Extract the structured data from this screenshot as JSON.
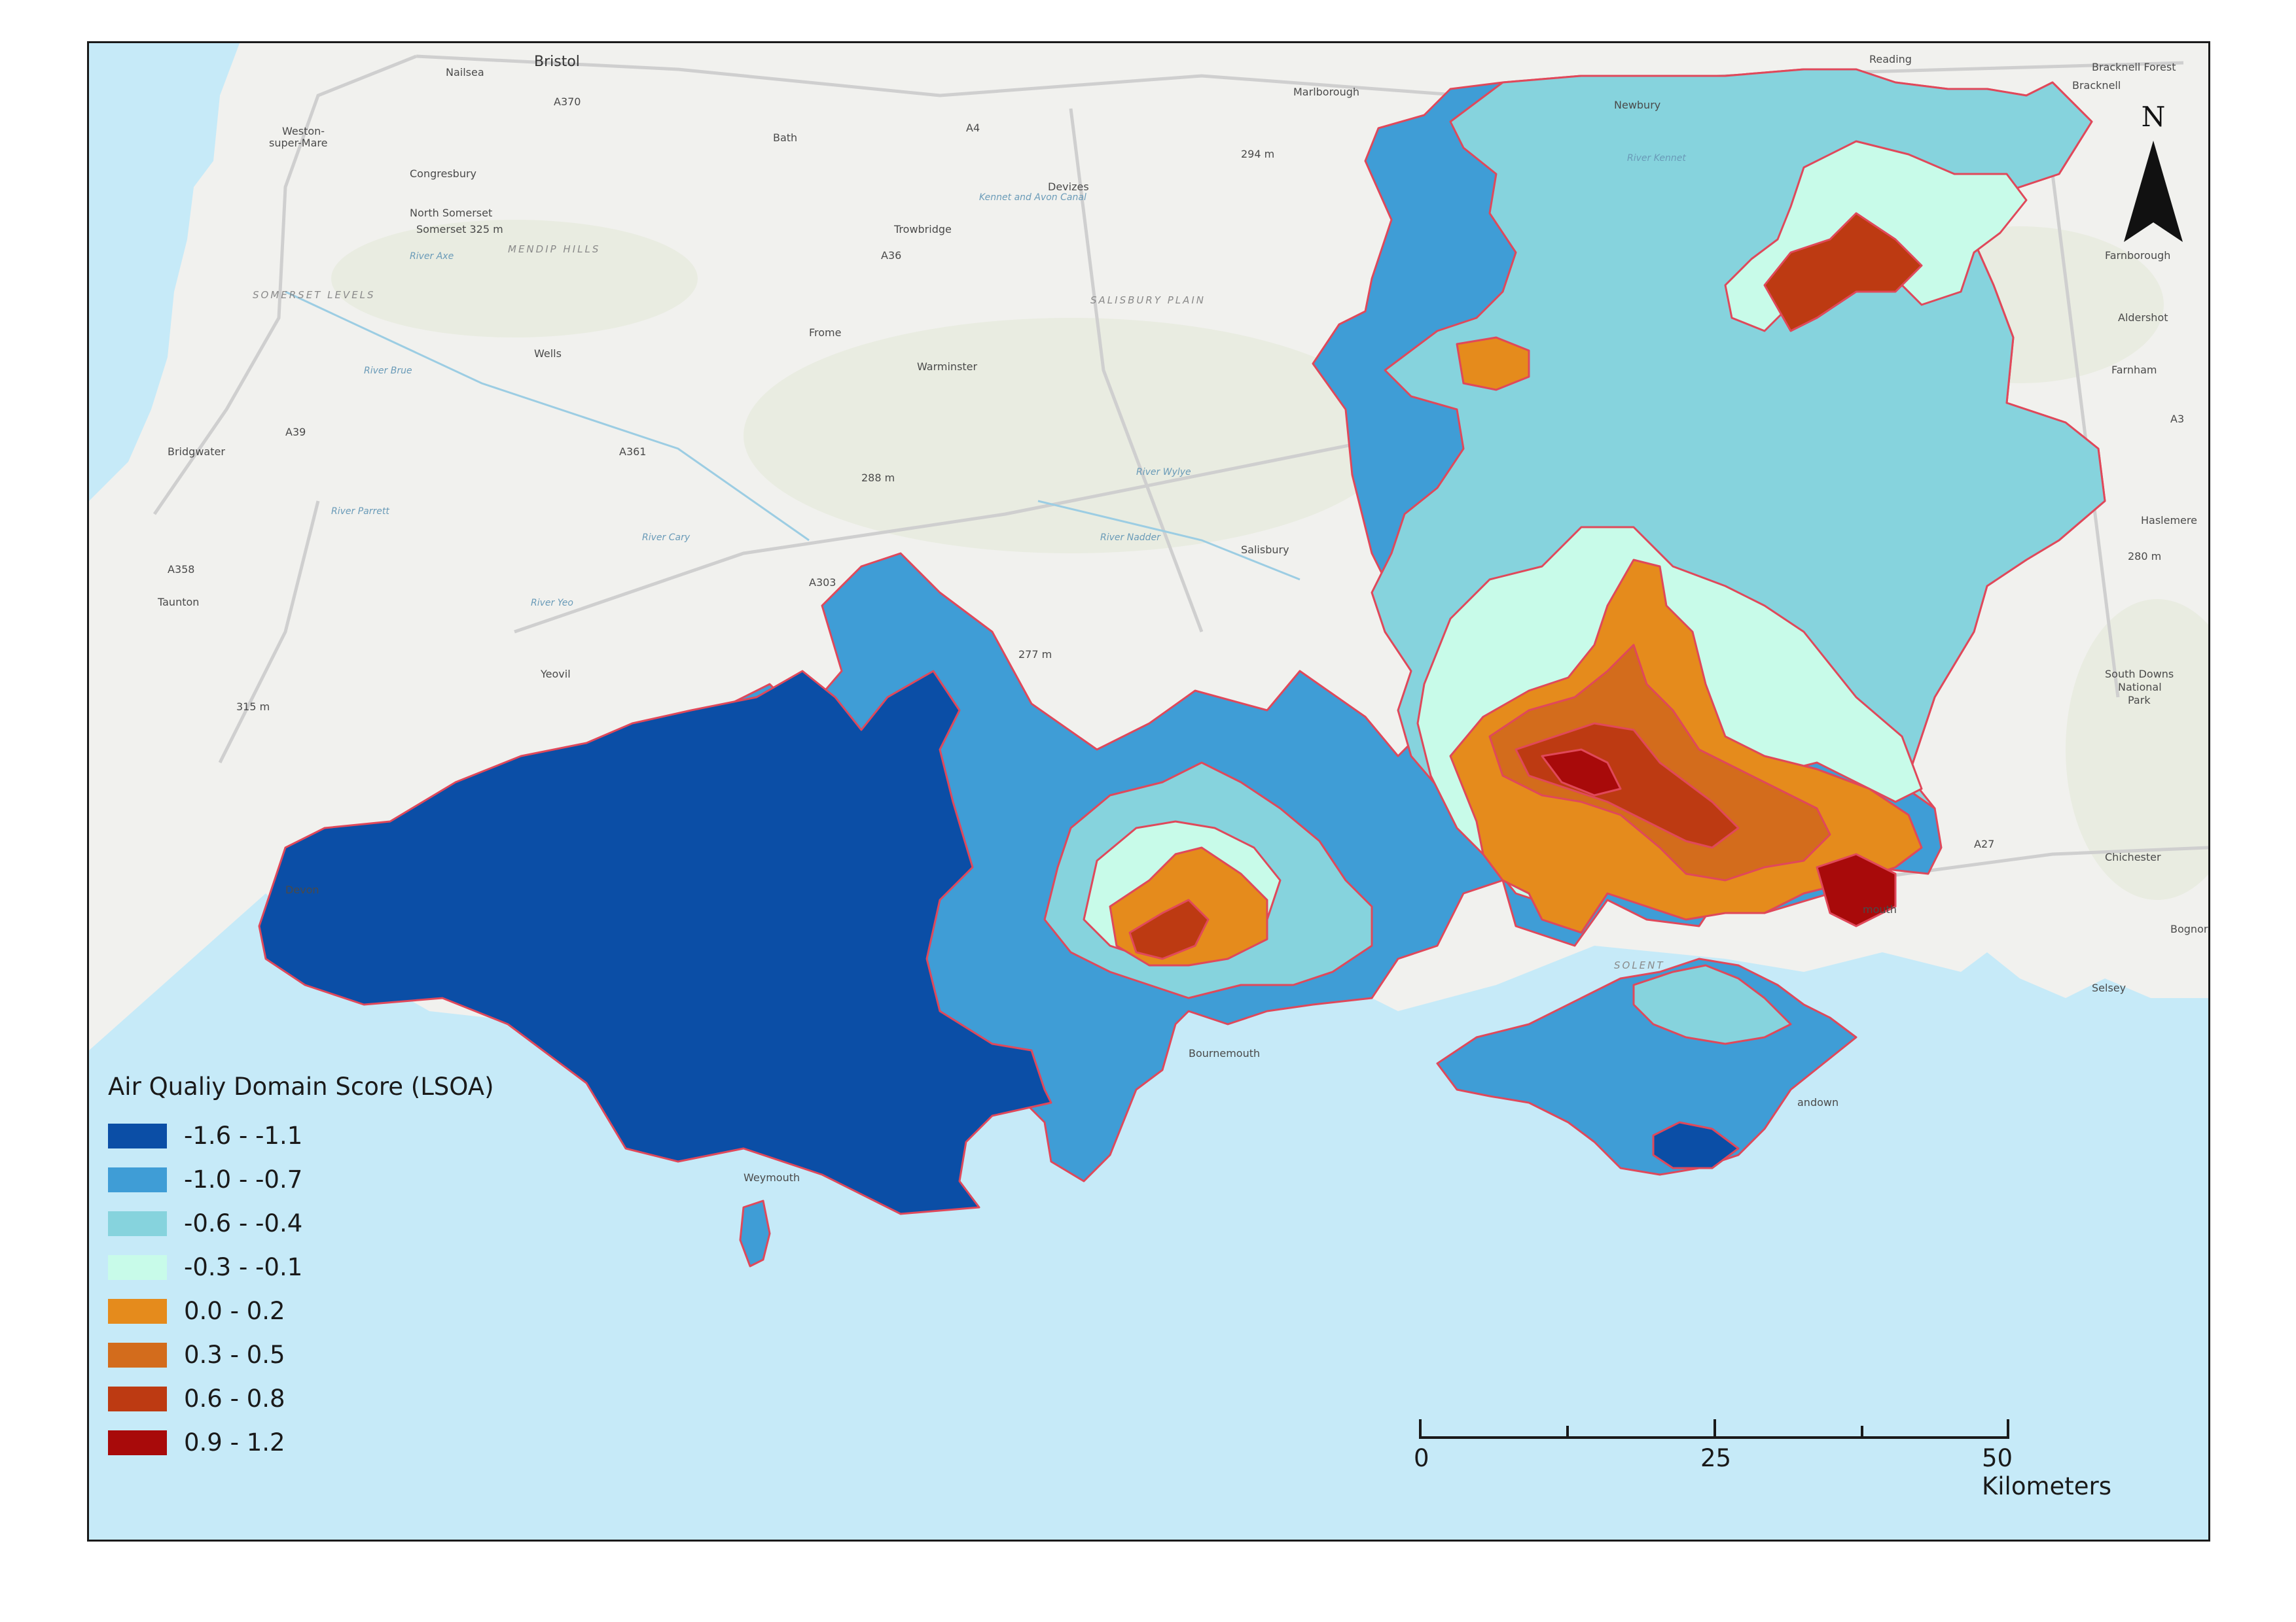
{
  "legend": {
    "title": "Air Qualiy Domain Score (LSOA)",
    "classes": [
      {
        "label": "-1.6 - -1.1",
        "color": "#0b4ea6"
      },
      {
        "label": "-1.0 - -0.7",
        "color": "#3f9dd6"
      },
      {
        "label": "-0.6 - -0.4",
        "color": "#86d3dd"
      },
      {
        "label": "-0.3 - -0.1",
        "color": "#c8fbe9"
      },
      {
        "label": "0.0 - 0.2",
        "color": "#e58b1c"
      },
      {
        "label": "0.3 - 0.5",
        "color": "#d36c1c"
      },
      {
        "label": "0.6 - 0.8",
        "color": "#bd3a12"
      },
      {
        "label": "0.9 - 1.2",
        "color": "#a80a0a"
      }
    ]
  },
  "scalebar": {
    "labels": [
      "0",
      "25",
      "50 Kilometers"
    ]
  },
  "north_arrow": {
    "label": "N"
  },
  "basemap_labels": {
    "bristol": "Bristol",
    "nailsea": "Nailsea",
    "reading": "Reading",
    "bracknell": "Bracknell",
    "bracknell_forest": "Bracknell Forest",
    "marlborough": "Marlborough",
    "newbury": "Newbury",
    "weston": "Weston-",
    "weston2": "super-Mare",
    "congresbury": "Congresbury",
    "bath": "Bath",
    "devizes": "Devizes",
    "trowbridge": "Trowbridge",
    "north_somerset": "North Somerset",
    "somerset_325": "Somerset 325 m",
    "mendip": "MENDIP HILLS",
    "somerset_levels": "SOMERSET LEVELS",
    "frome": "Frome",
    "wells": "Wells",
    "salisbury_plain": "SALISBURY PLAIN",
    "warminster": "Warminster",
    "bridgwater": "Bridgwater",
    "salisbury": "Salisbury",
    "taunton": "Taunton",
    "yeovil": "Yeovil",
    "devon": "Devon",
    "farnborough": "Farnborough",
    "aldershot": "Aldershot",
    "farnham": "Farnham",
    "haslemere": "Haslemere",
    "south_downs": "South Downs",
    "national": "National",
    "park": "Park",
    "chichester": "Chichester",
    "bognor": "Bognor",
    "selsey": "Selsey",
    "bournemouth": "Bournemouth",
    "weymouth": "Weymouth",
    "solent": "SOLENT",
    "sandown": "andown",
    "portsmouth": "mouth",
    "m294": "294 m",
    "m288": "288 m",
    "m277": "277 m",
    "m315": "315 m",
    "m280": "280 m",
    "r_brue": "River Brue",
    "r_axe": "River Axe",
    "r_parrett": "River Parrett",
    "r_cary": "River Cary",
    "r_yeo": "River Yeo",
    "r_nadder": "River Nadder",
    "r_wylye": "River Wylye",
    "r_kennet": "River Kennet",
    "canal": "Kennet and Avon Canal",
    "a370": "A370",
    "a4": "A4",
    "a303": "A303",
    "a36": "A36",
    "a27": "A27",
    "a3": "A3",
    "a358": "A358",
    "a39": "A39",
    "a361": "A361"
  }
}
